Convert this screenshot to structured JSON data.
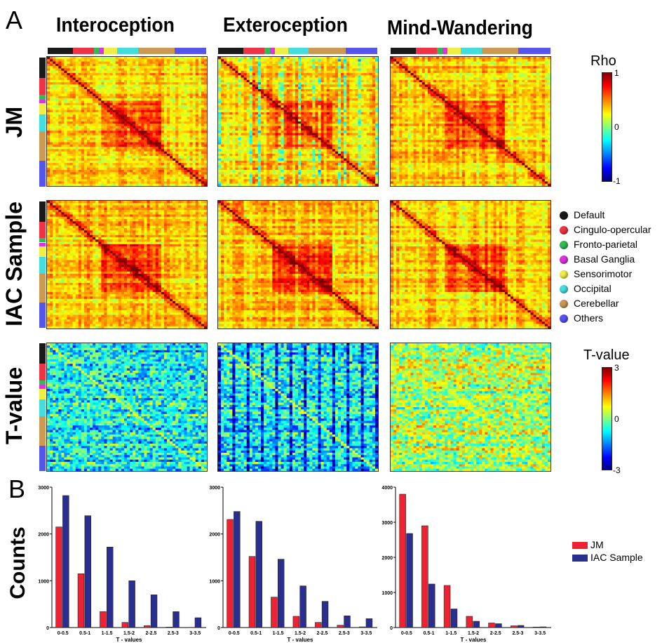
{
  "panel_labels": {
    "a": "A",
    "b": "B"
  },
  "columns": [
    "Interoception",
    "Exteroception",
    "Mind-Wandering"
  ],
  "rows": [
    "JM",
    "IAC Sample",
    "T-value"
  ],
  "network_legend": [
    {
      "label": "Default",
      "color": "#1a1a1a"
    },
    {
      "label": "Cingulo-opercular",
      "color": "#ee3344"
    },
    {
      "label": "Fronto-parietal",
      "color": "#33bb55"
    },
    {
      "label": "Basal Ganglia",
      "color": "#dd33dd"
    },
    {
      "label": "Sensorimotor",
      "color": "#eeee44"
    },
    {
      "label": "Occipital",
      "color": "#44dddd"
    },
    {
      "label": "Cerebellar",
      "color": "#cc9955"
    },
    {
      "label": "Others",
      "color": "#5555ee"
    }
  ],
  "network_strip_fractions": [
    0.16,
    0.13,
    0.035,
    0.03,
    0.085,
    0.13,
    0.23,
    0.2
  ],
  "colorbars": {
    "rho": {
      "title": "Rho",
      "top": "1",
      "mid": "0",
      "bottom": "-1"
    },
    "tvalue": {
      "title": "T-value",
      "top": "3",
      "mid": "0",
      "bottom": "-3"
    }
  },
  "bar_legend": {
    "series": [
      {
        "name": "JM",
        "color": "#ee2233"
      },
      {
        "name": "IAC Sample",
        "color": "#2a2f8f"
      }
    ]
  },
  "ylabel": "Counts",
  "chart_data": [
    {
      "type": "bar",
      "categories": [
        "0-0.5",
        "0.5-1",
        "1-1.5",
        "1.5-2",
        "2-2.5",
        "2.5-3",
        "3-3.5"
      ],
      "series": [
        {
          "name": "JM",
          "values": [
            2150,
            1150,
            340,
            110,
            40,
            10,
            5
          ]
        },
        {
          "name": "IAC Sample",
          "values": [
            2820,
            2390,
            1720,
            1000,
            700,
            340,
            210
          ]
        }
      ],
      "xlabel": "T - values",
      "ylim": [
        0,
        3000
      ],
      "yticks": [
        "0",
        "1000",
        "2000",
        "3000"
      ]
    },
    {
      "type": "bar",
      "categories": [
        "0-0.5",
        "0.5-1",
        "1-1.5",
        "1.5-2",
        "2-2.5",
        "2.5-3",
        "3-3.5"
      ],
      "series": [
        {
          "name": "JM",
          "values": [
            2310,
            1520,
            650,
            240,
            110,
            50,
            15
          ]
        },
        {
          "name": "IAC Sample",
          "values": [
            2480,
            2270,
            1460,
            890,
            560,
            250,
            190
          ]
        }
      ],
      "xlabel": "T - values",
      "ylim": [
        0,
        3000
      ],
      "yticks": [
        "0",
        "1000",
        "2000",
        "3000"
      ]
    },
    {
      "type": "bar",
      "categories": [
        "0-0.5",
        "0.5-1",
        "1-1.5",
        "1.5-2",
        "2-2.5",
        "2.5-3",
        "3-3.5"
      ],
      "series": [
        {
          "name": "JM",
          "values": [
            3800,
            2900,
            1200,
            320,
            130,
            50,
            15
          ]
        },
        {
          "name": "IAC Sample",
          "values": [
            2680,
            1240,
            530,
            180,
            110,
            60,
            20
          ]
        }
      ],
      "xlabel": "T - values",
      "ylim": [
        0,
        4000
      ],
      "yticks": [
        "0",
        "1000",
        "2000",
        "3000",
        "4000"
      ]
    }
  ]
}
